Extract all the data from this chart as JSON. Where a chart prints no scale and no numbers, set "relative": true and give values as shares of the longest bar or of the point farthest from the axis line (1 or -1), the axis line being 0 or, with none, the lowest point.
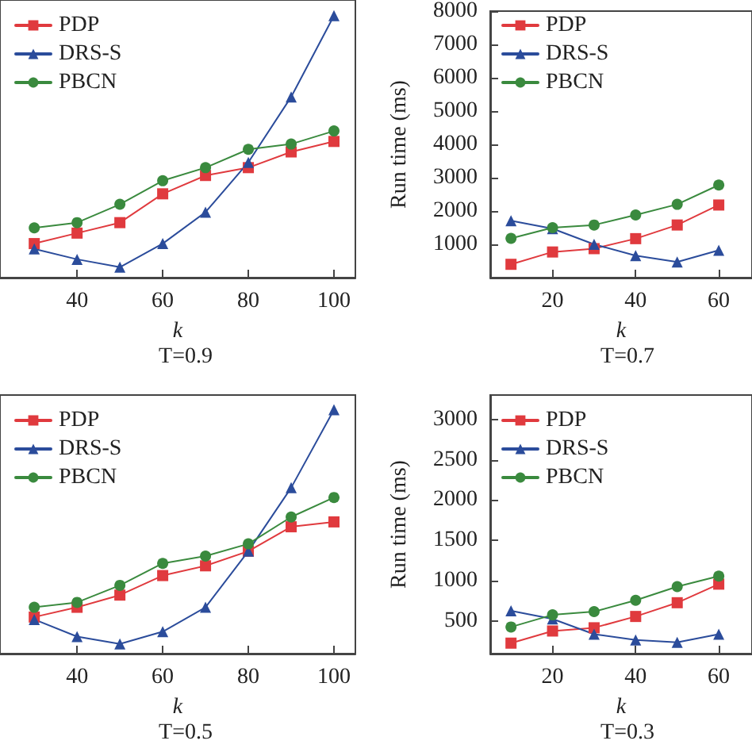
{
  "chart_data": [
    {
      "type": "line",
      "title": "T=0.9",
      "xlabel": "k",
      "relative": true,
      "tick_labels": "x",
      "xlim": [
        22,
        105
      ],
      "xticks": [
        40,
        60,
        80,
        100
      ],
      "x": [
        30,
        40,
        50,
        60,
        70,
        80,
        90,
        100
      ],
      "legend": "top left",
      "grid": false,
      "series": [
        {
          "name": "PDP",
          "color": "#e03a3e",
          "marker": "square",
          "values": [
            0.13,
            0.17,
            0.21,
            0.32,
            0.39,
            0.42,
            0.48,
            0.52
          ]
        },
        {
          "name": "DRS-S",
          "color": "#2b4c9b",
          "marker": "triangle",
          "values": [
            0.11,
            0.07,
            0.04,
            0.13,
            0.25,
            0.44,
            0.69,
            1
          ]
        },
        {
          "name": "PBCN",
          "color": "#3a8a3e",
          "marker": "circle",
          "values": [
            0.19,
            0.21,
            0.28,
            0.37,
            0.42,
            0.49,
            0.51,
            0.56
          ]
        }
      ]
    },
    {
      "type": "line",
      "title": "T=0.7",
      "xlabel": "k",
      "ylabel": "Run time (ms)",
      "xlim": [
        5,
        68
      ],
      "xticks": [
        20,
        40,
        60
      ],
      "ylim": [
        0,
        8000
      ],
      "yticks": [
        1000,
        2000,
        3000,
        4000,
        5000,
        6000,
        7000,
        8000
      ],
      "x": [
        10,
        20,
        30,
        40,
        50,
        60
      ],
      "legend": "top left",
      "grid": false,
      "series": [
        {
          "name": "PDP",
          "color": "#e03a3e",
          "marker": "square",
          "values": [
            400,
            770,
            870,
            1170,
            1580,
            2180
          ]
        },
        {
          "name": "DRS-S",
          "color": "#2b4c9b",
          "marker": "triangle",
          "values": [
            1710,
            1470,
            1000,
            660,
            470,
            820
          ]
        },
        {
          "name": "PBCN",
          "color": "#3a8a3e",
          "marker": "circle",
          "values": [
            1180,
            1500,
            1580,
            1880,
            2200,
            2780
          ]
        }
      ]
    },
    {
      "type": "line",
      "title": "T=0.5",
      "xlabel": "k",
      "relative": true,
      "tick_labels": "x",
      "xlim": [
        22,
        105
      ],
      "xticks": [
        40,
        60,
        80,
        100
      ],
      "x": [
        30,
        40,
        50,
        60,
        70,
        80,
        90,
        100
      ],
      "legend": "top left",
      "grid": false,
      "series": [
        {
          "name": "PDP",
          "color": "#e03a3e",
          "marker": "square",
          "values": [
            0.15,
            0.19,
            0.24,
            0.32,
            0.36,
            0.42,
            0.52,
            0.54
          ]
        },
        {
          "name": "DRS-S",
          "color": "#2b4c9b",
          "marker": "triangle",
          "values": [
            0.14,
            0.07,
            0.04,
            0.09,
            0.19,
            0.42,
            0.68,
            1
          ]
        },
        {
          "name": "PBCN",
          "color": "#3a8a3e",
          "marker": "circle",
          "values": [
            0.19,
            0.21,
            0.28,
            0.37,
            0.4,
            0.45,
            0.56,
            0.64
          ]
        }
      ]
    },
    {
      "type": "line",
      "title": "T=0.3",
      "xlabel": "k",
      "ylabel": "Run time (ms)",
      "xlim": [
        5,
        68
      ],
      "xticks": [
        20,
        40,
        60
      ],
      "ylim": [
        100,
        3300
      ],
      "yticks": [
        500,
        1000,
        1500,
        2000,
        2500,
        3000
      ],
      "x": [
        10,
        20,
        30,
        40,
        50,
        60
      ],
      "legend": "top left",
      "grid": false,
      "series": [
        {
          "name": "PDP",
          "color": "#e03a3e",
          "marker": "square",
          "values": [
            230,
            380,
            420,
            560,
            730,
            960
          ]
        },
        {
          "name": "DRS-S",
          "color": "#2b4c9b",
          "marker": "triangle",
          "values": [
            630,
            530,
            340,
            270,
            240,
            340
          ]
        },
        {
          "name": "PBCN",
          "color": "#3a8a3e",
          "marker": "circle",
          "values": [
            430,
            580,
            620,
            760,
            930,
            1060
          ]
        }
      ]
    }
  ]
}
